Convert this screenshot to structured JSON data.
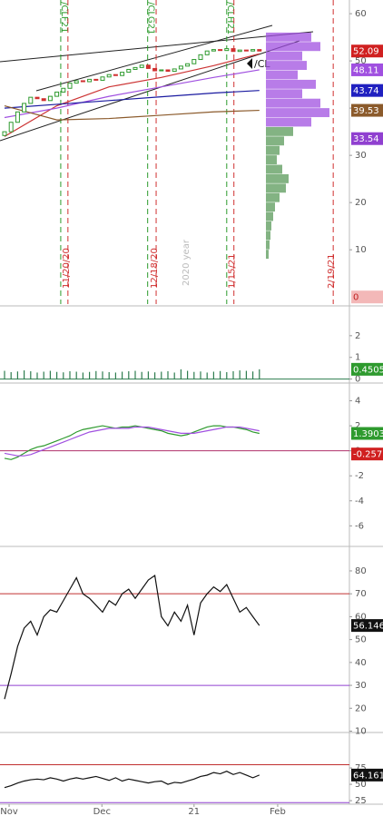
{
  "chart_data": [
    {
      "type": "candlestick",
      "open": [
        34.2,
        35.0,
        37.0,
        39.2,
        41.0,
        42.3,
        42.0,
        41.6,
        42.5,
        43.4,
        44.2,
        45.3,
        45.8,
        45.6,
        46.1,
        45.9,
        46.6,
        47.1,
        46.9,
        47.6,
        48.2,
        48.6,
        49.1,
        48.4,
        47.9,
        48.1,
        47.8,
        48.3,
        48.9,
        49.4,
        50.3,
        51.3,
        52.1,
        52.4,
        52.2,
        52.6,
        52.0,
        52.3,
        52.1,
        52.4
      ],
      "close": [
        35.0,
        37.0,
        39.2,
        41.0,
        42.3,
        42.0,
        41.6,
        42.5,
        43.4,
        44.2,
        45.3,
        45.8,
        45.6,
        46.1,
        45.9,
        46.6,
        47.1,
        46.9,
        47.6,
        48.2,
        48.6,
        49.1,
        48.4,
        47.9,
        48.1,
        47.8,
        48.3,
        48.9,
        49.4,
        50.3,
        51.3,
        52.1,
        52.4,
        52.2,
        52.6,
        52.0,
        52.3,
        52.1,
        52.4,
        52.09
      ],
      "up_color": "#2e9a2e",
      "down_color": "#d03030",
      "overlay_index": [
        0,
        8,
        16,
        24,
        32,
        39
      ],
      "overlays": [
        {
          "color": "#cc3333",
          "values": [
            34,
            40.5,
            44.5,
            46.5,
            49,
            51.5
          ]
        },
        {
          "color": "#a050e0",
          "values": [
            38,
            40,
            42.5,
            44.5,
            46.5,
            48.11
          ]
        },
        {
          "color": "#1a1aa0",
          "values": [
            40,
            40.8,
            41.6,
            42.4,
            43.2,
            43.74
          ]
        },
        {
          "color": "#8b5a2b",
          "values": [
            40.5,
            37.5,
            37.8,
            38.5,
            39.2,
            39.53
          ]
        }
      ],
      "volume_profile": {
        "prices": [
          55,
          53,
          51,
          49,
          47,
          45,
          43,
          41,
          39,
          37,
          35,
          33,
          31,
          29,
          27,
          25,
          23,
          21,
          19,
          17,
          15,
          13,
          11,
          9
        ],
        "values": [
          50,
          60,
          40,
          45,
          35,
          55,
          40,
          60,
          70,
          50,
          30,
          20,
          15,
          12,
          18,
          25,
          22,
          15,
          10,
          8,
          6,
          5,
          4,
          3
        ],
        "colors": [
          "#a050e0",
          "#a050e0",
          "#a050e0",
          "#a050e0",
          "#a050e0",
          "#a050e0",
          "#a050e0",
          "#a050e0",
          "#a050e0",
          "#a050e0",
          "#5a9a5a",
          "#5a9a5a",
          "#5a9a5a",
          "#5a9a5a",
          "#5a9a5a",
          "#5a9a5a",
          "#5a9a5a",
          "#5a9a5a",
          "#5a9a5a",
          "#5a9a5a",
          "#5a9a5a",
          "#5a9a5a",
          "#5a9a5a",
          "#5a9a5a"
        ]
      },
      "contracts": [
        {
          "index": 8.6,
          "label": "/CLF21"
        },
        {
          "index": 21.9,
          "label": "/CLG21"
        },
        {
          "index": 34,
          "label": "/CLH21"
        }
      ],
      "contract_color": "#2a9a2a",
      "dates": [
        {
          "index": 9.7,
          "label": "11/20/20"
        },
        {
          "index": 23.2,
          "label": "12/18/20"
        },
        {
          "index": 35.1,
          "label": "1/15/21"
        },
        {
          "index": 50.3,
          "label": "2/19/21"
        }
      ],
      "date_color": "#d03030",
      "year_label": "2020 year",
      "annotation": "/CL",
      "levels": [
        {
          "value": 52.09,
          "color": "#d02020"
        },
        {
          "value": 48.11,
          "color": "#a050e0"
        },
        {
          "value": 43.74,
          "color": "#2020c0"
        },
        {
          "value": 39.53,
          "color": "#8b5a2b"
        },
        {
          "value": 33.54,
          "color": "#9040d0"
        },
        {
          "value": 0,
          "color": "#f3b8b8"
        }
      ],
      "ylim": [
        -1.5,
        62.9
      ],
      "yticks": [
        10,
        20,
        30,
        40,
        50,
        60
      ]
    },
    {
      "type": "bar",
      "color": "#2e7d4f",
      "values": [
        0.38,
        0.32,
        0.35,
        0.4,
        0.36,
        0.3,
        0.34,
        0.38,
        0.33,
        0.31,
        0.36,
        0.34,
        0.3,
        0.33,
        0.37,
        0.35,
        0.32,
        0.3,
        0.34,
        0.36,
        0.38,
        0.33,
        0.35,
        0.31,
        0.34,
        0.36,
        0.3,
        0.45,
        0.38,
        0.33,
        0.35,
        0.3,
        0.34,
        0.37,
        0.32,
        0.36,
        0.4,
        0.38,
        0.35,
        0.4505
      ],
      "levels": [
        {
          "value": 0.4505,
          "color": "#2e9a2e"
        }
      ],
      "ylim": [
        -0.1,
        3.25
      ],
      "yticks": [
        0,
        1,
        2
      ]
    },
    {
      "type": "line",
      "series": [
        {
          "color": "#2e9a2e",
          "values": [
            -0.6,
            -0.7,
            -0.5,
            -0.2,
            0.1,
            0.3,
            0.4,
            0.6,
            0.8,
            1.0,
            1.2,
            1.5,
            1.7,
            1.8,
            1.9,
            2.0,
            1.9,
            1.8,
            1.9,
            1.9,
            2.0,
            1.9,
            1.8,
            1.7,
            1.6,
            1.4,
            1.3,
            1.2,
            1.3,
            1.5,
            1.7,
            1.9,
            2.0,
            2.0,
            1.9,
            1.9,
            1.8,
            1.7,
            1.5,
            1.3903
          ]
        },
        {
          "color": "#a050e0",
          "values": [
            -0.2,
            -0.3,
            -0.4,
            -0.4,
            -0.3,
            -0.1,
            0.1,
            0.3,
            0.5,
            0.7,
            0.9,
            1.1,
            1.3,
            1.5,
            1.6,
            1.7,
            1.8,
            1.8,
            1.8,
            1.8,
            1.9,
            1.9,
            1.9,
            1.8,
            1.7,
            1.6,
            1.5,
            1.4,
            1.4,
            1.4,
            1.5,
            1.6,
            1.7,
            1.8,
            1.9,
            1.9,
            1.9,
            1.8,
            1.7,
            1.6
          ]
        }
      ],
      "hlines": [
        {
          "value": 0,
          "color": "#b0306a"
        }
      ],
      "levels": [
        {
          "value": 1.3903,
          "color": "#2e9a2e"
        },
        {
          "value": -0.257,
          "color": "#d02020"
        }
      ],
      "ylim": [
        -7.5,
        5.2
      ],
      "yticks": [
        -6,
        -4,
        -2,
        0,
        2,
        4
      ]
    },
    {
      "type": "line",
      "series": [
        {
          "color": "#111111",
          "values": [
            24,
            35,
            47,
            55,
            58,
            52,
            60,
            63,
            62,
            67,
            72,
            77,
            70,
            68,
            65,
            62,
            67,
            65,
            70,
            72,
            68,
            72,
            76,
            78,
            60,
            56,
            62,
            58,
            65,
            52,
            66,
            70,
            73,
            71,
            74,
            68,
            62,
            64,
            60,
            56.146
          ]
        }
      ],
      "hlines": [
        {
          "value": 70,
          "color": "#c03030"
        },
        {
          "value": 30,
          "color": "#9040d0"
        }
      ],
      "levels": [
        {
          "value": 56.146,
          "color": "#111111"
        }
      ],
      "ylim": [
        10.2,
        89.5
      ],
      "yticks": [
        10,
        20,
        30,
        40,
        50,
        60,
        70,
        80
      ]
    },
    {
      "type": "line",
      "series": [
        {
          "color": "#111111",
          "values": [
            45,
            48,
            52,
            55,
            57,
            58,
            57,
            60,
            58,
            55,
            58,
            60,
            58,
            60,
            62,
            59,
            56,
            60,
            55,
            58,
            56,
            54,
            52,
            54,
            55,
            50,
            53,
            52,
            55,
            58,
            62,
            64,
            68,
            66,
            70,
            65,
            68,
            64,
            60,
            64.161
          ]
        }
      ],
      "hlines": [
        {
          "value": 80,
          "color": "#c03030"
        },
        {
          "value": 22,
          "color": "#9040d0"
        }
      ],
      "levels": [
        {
          "value": 64.161,
          "color": "#111111"
        }
      ],
      "ylim": [
        21,
        125
      ],
      "yticks": [
        25,
        50,
        75
      ],
      "xticks": [
        {
          "value": 0.7,
          "label": "Nov"
        },
        {
          "value": 14.9,
          "label": "Dec"
        },
        {
          "value": 29,
          "label": "21"
        },
        {
          "value": 41.8,
          "label": "Feb"
        }
      ]
    }
  ]
}
